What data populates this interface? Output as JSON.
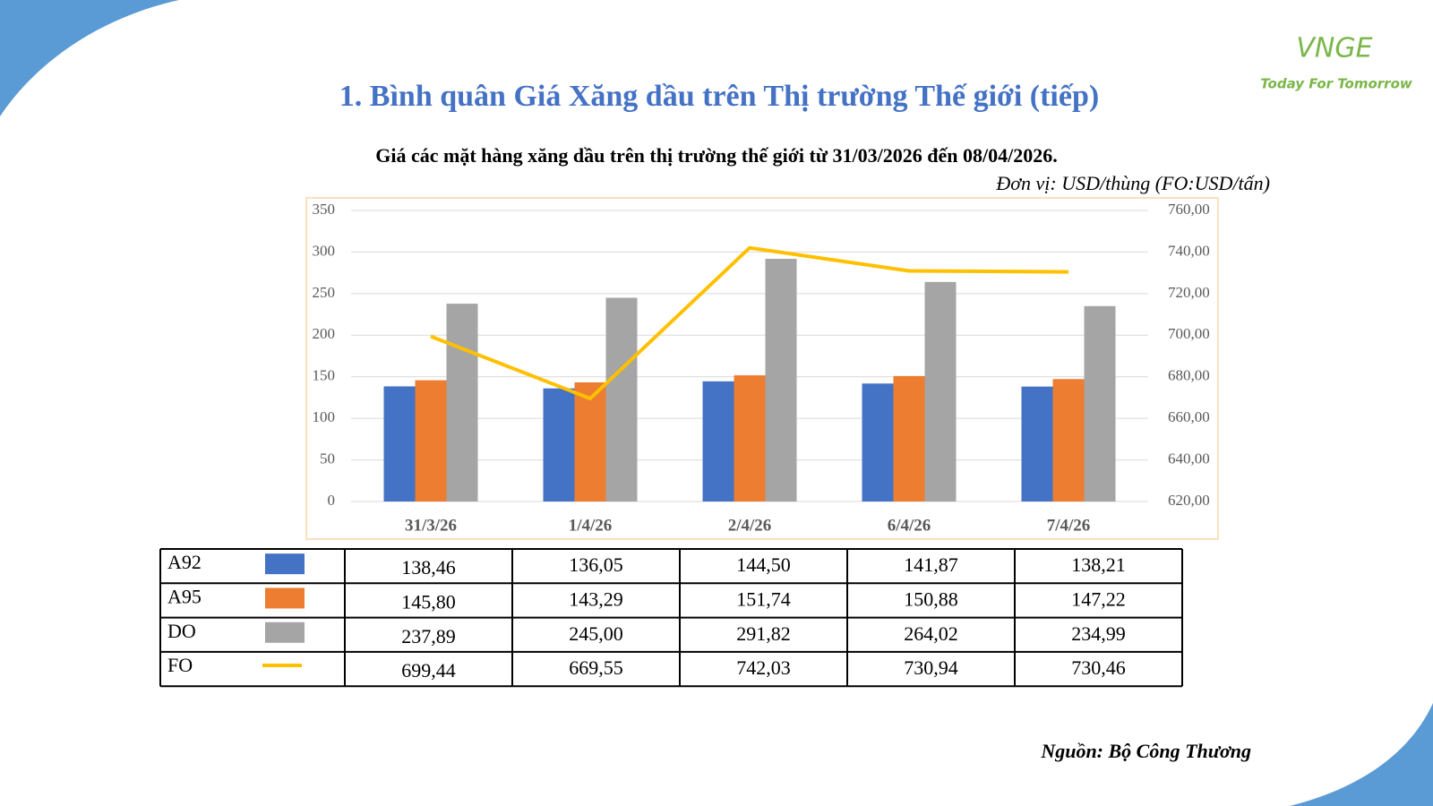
{
  "header": {
    "title": "1. Bình quân Giá Xăng dầu trên Thị trường Thế giới (tiếp)",
    "logo": "VNGE",
    "tagline": "Today For Tomorrow"
  },
  "chart_data": {
    "type": "bar",
    "title": "Giá các mặt hàng xăng dầu trên thị trường thế giới từ 31/03/2026 đến 08/04/2026.",
    "subtitle": "Đơn vị: USD/thùng (FO:USD/tấn)",
    "categories": [
      "31/3/26",
      "1/4/26",
      "2/4/26",
      "6/4/26",
      "7/4/26"
    ],
    "series": [
      {
        "name": "A92",
        "color": "#4472c4",
        "values": [
          138.46,
          136.05,
          144.5,
          141.87,
          138.21
        ],
        "value_labels": [
          "138,46",
          "136,05",
          "144,50",
          "141,87",
          "138,21"
        ]
      },
      {
        "name": "A95",
        "color": "#ed7d31",
        "values": [
          145.8,
          143.29,
          151.74,
          150.88,
          147.22
        ],
        "value_labels": [
          "145,80",
          "143,29",
          "151,74",
          "150,88",
          "147,22"
        ]
      },
      {
        "name": "DO",
        "color": "#a5a5a5",
        "values": [
          237.89,
          245.0,
          291.82,
          264.02,
          234.99
        ],
        "value_labels": [
          "237,89",
          "245,00",
          "291,82",
          "264,02",
          "234,99"
        ]
      },
      {
        "name": "FO",
        "color": "#ffc000",
        "type": "line",
        "axis": "y2",
        "values": [
          699.44,
          669.55,
          742.03,
          730.94,
          730.46
        ],
        "value_labels": [
          "699,44",
          "669,55",
          "742,03",
          "730,94",
          "730,46"
        ]
      }
    ],
    "ylim": [
      0,
      350
    ],
    "yticks": [
      0,
      50,
      100,
      150,
      200,
      250,
      300,
      350
    ],
    "y2lim": [
      620,
      760
    ],
    "y2ticks": [
      {
        "value": 620,
        "label": "620,00"
      },
      {
        "value": 640,
        "label": "640,00"
      },
      {
        "value": 660,
        "label": "660,00"
      },
      {
        "value": 680,
        "label": "680,00"
      },
      {
        "value": 700,
        "label": "700,00"
      },
      {
        "value": 720,
        "label": "720,00"
      },
      {
        "value": 740,
        "label": "740,00"
      },
      {
        "value": 760,
        "label": "760,00"
      }
    ],
    "grid": true
  },
  "footer": {
    "source": "Nguồn: Bộ Công Thương"
  }
}
